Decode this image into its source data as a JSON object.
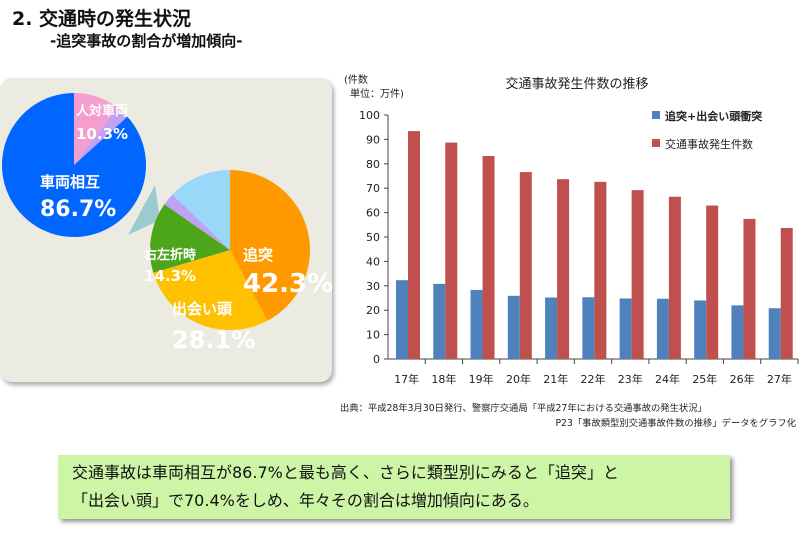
{
  "header": {
    "title": "2.  交通時の発生状況",
    "subtitle": "-追突事故の割合が増加傾向-"
  },
  "chart_data": [
    {
      "type": "pie",
      "slices": [
        {
          "label": "人対車両",
          "value": 10.3,
          "text": "10.3%",
          "color": "#f49ed0"
        },
        {
          "label": "",
          "value": 3.0,
          "text": "",
          "color": "#bfa2f2"
        },
        {
          "label": "車両相互",
          "value": 86.7,
          "text": "86.7%",
          "color": "#0066ff"
        }
      ]
    },
    {
      "type": "pie",
      "slices": [
        {
          "label": "追突",
          "value": 42.3,
          "text": "42.3%",
          "color": "#ff9900"
        },
        {
          "label": "出会い頭",
          "value": 28.1,
          "text": "28.1%",
          "color": "#ffc000"
        },
        {
          "label": "右左折時",
          "value": 14.3,
          "text": "14.3%",
          "color": "#4da51c"
        },
        {
          "label": "",
          "value": 2.5,
          "text": "",
          "color": "#bfa2f2"
        },
        {
          "label": "",
          "value": 12.8,
          "text": "",
          "color": "#99d8f8"
        }
      ]
    },
    {
      "type": "bar",
      "title": "交通事故発生件数の推移",
      "ylabel": "(件数\n単位：万件)",
      "ylim": [
        0,
        100
      ],
      "yticks": [
        0,
        10,
        20,
        30,
        40,
        50,
        60,
        70,
        80,
        90,
        100
      ],
      "categories": [
        "17年",
        "18年",
        "19年",
        "20年",
        "21年",
        "22年",
        "23年",
        "24年",
        "25年",
        "26年",
        "27年"
      ],
      "series": [
        {
          "name": "追突+出会い頭衝突",
          "color": "#4f81bd",
          "values": [
            32.3,
            30.8,
            28.3,
            25.9,
            25.2,
            25.3,
            24.8,
            24.7,
            24.0,
            22.0,
            20.8
          ]
        },
        {
          "name": "交通事故発生件数",
          "color": "#c0504d",
          "values": [
            93.4,
            88.7,
            83.2,
            76.6,
            73.7,
            72.6,
            69.2,
            66.5,
            62.9,
            57.4,
            53.7
          ]
        }
      ],
      "legend": "top-right",
      "source": [
        "出典：平成28年3月30日発行、警察庁交通局「平成27年における交通事故の発生状況」",
        "P23「事故類型別交通事故件数の推移」データをグラフ化"
      ]
    }
  ],
  "note": {
    "line1": "交通事故は車両相互が86.7%と最も高く、さらに類型別にみると「追突」と",
    "line2": "「出会い頭」で70.4%をしめ、年々その割合は増加傾向にある。"
  }
}
